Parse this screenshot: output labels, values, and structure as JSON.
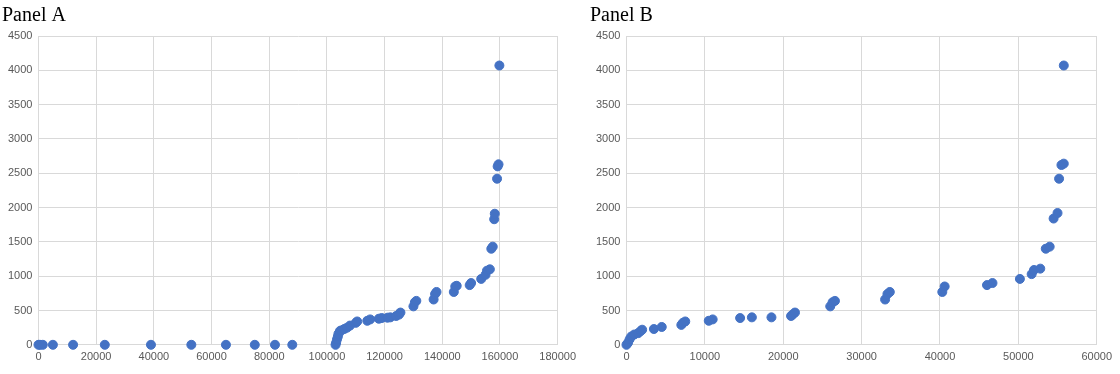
{
  "chart_data": [
    {
      "type": "scatter",
      "title": "Panel A",
      "color": "#4472c4",
      "grid": true,
      "x": [
        0,
        500,
        1500,
        5000,
        12000,
        23000,
        39000,
        53000,
        65000,
        75000,
        82000,
        88000,
        103000,
        103200,
        103500,
        103800,
        104000,
        104500,
        105000,
        106000,
        107000,
        108000,
        110000,
        110500,
        114000,
        115000,
        118000,
        119000,
        121000,
        122000,
        124000,
        125000,
        125500,
        130000,
        130500,
        131000,
        137000,
        137500,
        138000,
        144000,
        144500,
        145000,
        149500,
        150000,
        153500,
        155000,
        155500,
        156500,
        157000,
        157500,
        158000,
        158200,
        159000,
        159200,
        159500,
        159800
      ],
      "values": [
        0,
        0,
        0,
        0,
        0,
        0,
        0,
        0,
        0,
        0,
        0,
        0,
        0,
        30,
        80,
        120,
        160,
        200,
        210,
        230,
        250,
        280,
        320,
        340,
        350,
        370,
        380,
        390,
        395,
        400,
        420,
        440,
        470,
        560,
        620,
        640,
        660,
        740,
        770,
        770,
        850,
        860,
        870,
        900,
        960,
        1020,
        1080,
        1100,
        1400,
        1430,
        1830,
        1910,
        2420,
        2600,
        2630,
        4070
      ],
      "xlim": [
        0,
        180000
      ],
      "xticks": [
        0,
        20000,
        40000,
        60000,
        80000,
        100000,
        120000,
        140000,
        160000,
        180000
      ],
      "ylim": [
        0,
        4500
      ],
      "yticks": [
        0,
        500,
        1000,
        1500,
        2000,
        2500,
        3000,
        3500,
        4000,
        4500
      ]
    },
    {
      "type": "scatter",
      "title": "Panel B",
      "color": "#4472c4",
      "grid": true,
      "x": [
        0,
        200,
        400,
        600,
        1000,
        1500,
        1800,
        2000,
        3500,
        4500,
        7000,
        7200,
        7500,
        10500,
        11000,
        14500,
        16000,
        18500,
        21000,
        21200,
        21500,
        26000,
        26300,
        26600,
        33000,
        33300,
        33600,
        40300,
        40600,
        46000,
        46700,
        50200,
        51700,
        52000,
        52800,
        53500,
        54000,
        54500,
        55000,
        55200,
        55500,
        55800,
        55800
      ],
      "values": [
        0,
        30,
        80,
        120,
        150,
        170,
        200,
        220,
        230,
        260,
        290,
        320,
        340,
        350,
        370,
        390,
        400,
        400,
        420,
        440,
        470,
        560,
        620,
        640,
        660,
        740,
        770,
        770,
        850,
        870,
        900,
        960,
        1030,
        1090,
        1110,
        1400,
        1430,
        1840,
        1920,
        2420,
        2620,
        2640,
        4070
      ],
      "xlim": [
        0,
        60000
      ],
      "xticks": [
        0,
        10000,
        20000,
        30000,
        40000,
        50000,
        60000
      ],
      "ylim": [
        0,
        4500
      ],
      "yticks": [
        0,
        500,
        1000,
        1500,
        2000,
        2500,
        3000,
        3500,
        4000,
        4500
      ]
    }
  ]
}
